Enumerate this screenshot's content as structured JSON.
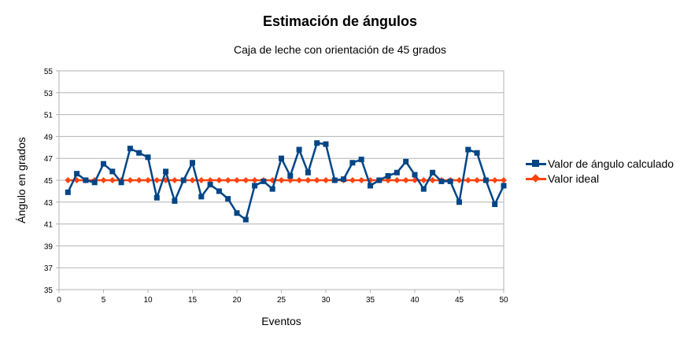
{
  "chart_data": {
    "type": "line",
    "title": "Estimación de ángulos",
    "subtitle": "Caja de leche con orientación de 45 grados",
    "xlabel": "Eventos",
    "ylabel": "Ángulo en grados",
    "xlim": [
      0,
      50
    ],
    "ylim": [
      35,
      55
    ],
    "xticks": [
      0,
      5,
      10,
      15,
      20,
      25,
      30,
      35,
      40,
      45,
      50
    ],
    "yticks": [
      35,
      37,
      39,
      41,
      43,
      45,
      47,
      49,
      51,
      53,
      55
    ],
    "grid": "horizontal",
    "legend_position": "right",
    "x": [
      1,
      2,
      3,
      4,
      5,
      6,
      7,
      8,
      9,
      10,
      11,
      12,
      13,
      14,
      15,
      16,
      17,
      18,
      19,
      20,
      21,
      22,
      23,
      24,
      25,
      26,
      27,
      28,
      29,
      30,
      31,
      32,
      33,
      34,
      35,
      36,
      37,
      38,
      39,
      40,
      41,
      42,
      43,
      44,
      45,
      46,
      47,
      48,
      49,
      50
    ],
    "series": [
      {
        "name": "Valor de ángulo calculado",
        "color": "#004586",
        "marker": "square",
        "values": [
          43.9,
          45.6,
          45.0,
          44.8,
          46.5,
          45.8,
          44.8,
          47.9,
          47.5,
          47.1,
          43.4,
          45.8,
          43.1,
          45.0,
          46.6,
          43.5,
          44.6,
          44.0,
          43.3,
          42.0,
          41.4,
          44.5,
          44.9,
          44.2,
          47.0,
          45.4,
          47.8,
          45.7,
          48.4,
          48.3,
          45.0,
          45.1,
          46.6,
          46.9,
          44.5,
          45.0,
          45.4,
          45.7,
          46.7,
          45.5,
          44.2,
          45.7,
          44.9,
          44.9,
          43.0,
          47.8,
          47.5,
          45.0,
          42.8,
          44.5
        ]
      },
      {
        "name": "Valor ideal",
        "color": "#ff420e",
        "marker": "diamond",
        "values": [
          45,
          45,
          45,
          45,
          45,
          45,
          45,
          45,
          45,
          45,
          45,
          45,
          45,
          45,
          45,
          45,
          45,
          45,
          45,
          45,
          45,
          45,
          45,
          45,
          45,
          45,
          45,
          45,
          45,
          45,
          45,
          45,
          45,
          45,
          45,
          45,
          45,
          45,
          45,
          45,
          45,
          45,
          45,
          45,
          45,
          45,
          45,
          45,
          45,
          45
        ]
      }
    ]
  }
}
